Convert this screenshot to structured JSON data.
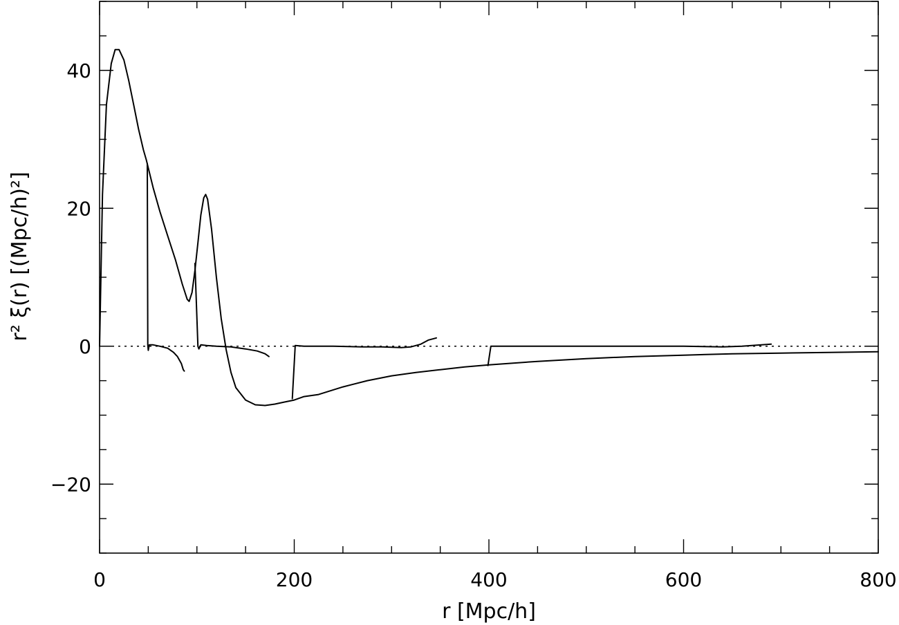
{
  "chart_data": {
    "type": "line",
    "title": "",
    "xlabel": "r  [Mpc/h]",
    "ylabel": "r² ξ(r)  [(Mpc/h)²]",
    "xlim": [
      0,
      800
    ],
    "ylim": [
      -30,
      50
    ],
    "x_ticks": [
      0,
      200,
      400,
      600,
      800
    ],
    "x_tick_labels": [
      "0",
      "200",
      "400",
      "600",
      "800"
    ],
    "x_minor_step": 50,
    "y_ticks": [
      -20,
      0,
      20,
      40
    ],
    "y_tick_labels": [
      "−20",
      "0",
      "20",
      "40"
    ],
    "y_minor_step": 5,
    "grid": false,
    "reference_lines": [
      {
        "y": 0,
        "style": "dotted"
      }
    ],
    "series": [
      {
        "values": [
          [
            0,
            0
          ],
          [
            3,
            22
          ],
          [
            7,
            35
          ],
          [
            12,
            41
          ],
          [
            16,
            43
          ],
          [
            20,
            43
          ],
          [
            25,
            41.5
          ],
          [
            30,
            38.5
          ],
          [
            35,
            35
          ],
          [
            40,
            31.5
          ],
          [
            45,
            28.5
          ],
          [
            48,
            27
          ],
          [
            55,
            23
          ],
          [
            62,
            19.5
          ],
          [
            70,
            16
          ],
          [
            78,
            12.5
          ],
          [
            85,
            9
          ],
          [
            90,
            6.8
          ],
          [
            92,
            6.5
          ],
          [
            95,
            7.8
          ],
          [
            98,
            11
          ],
          [
            101,
            15
          ],
          [
            104,
            19
          ],
          [
            107,
            21.5
          ],
          [
            109,
            22
          ],
          [
            111,
            21.3
          ],
          [
            115,
            17
          ],
          [
            120,
            10
          ],
          [
            125,
            4
          ],
          [
            130,
            -0.5
          ],
          [
            135,
            -3.8
          ],
          [
            140,
            -6
          ],
          [
            150,
            -7.8
          ],
          [
            160,
            -8.5
          ],
          [
            170,
            -8.6
          ],
          [
            180,
            -8.4
          ],
          [
            190,
            -8.1
          ],
          [
            200,
            -7.8
          ],
          [
            210,
            -7.3
          ],
          [
            225,
            -7
          ],
          [
            250,
            -5.9
          ],
          [
            275,
            -5
          ],
          [
            300,
            -4.3
          ],
          [
            325,
            -3.8
          ],
          [
            350,
            -3.4
          ],
          [
            375,
            -3.0
          ],
          [
            400,
            -2.7
          ],
          [
            450,
            -2.2
          ],
          [
            500,
            -1.8
          ],
          [
            550,
            -1.5
          ],
          [
            600,
            -1.3
          ],
          [
            650,
            -1.1
          ],
          [
            700,
            -1.0
          ],
          [
            750,
            -0.9
          ],
          [
            800,
            -0.8
          ]
        ]
      },
      {
        "values": [
          [
            49,
            26.5
          ],
          [
            49.5,
            0.2
          ],
          [
            50,
            -0.6
          ],
          [
            51,
            0.2
          ],
          [
            55,
            0.2
          ],
          [
            62,
            0
          ],
          [
            70,
            -0.3
          ],
          [
            76,
            -0.9
          ],
          [
            80,
            -1.5
          ],
          [
            84,
            -2.5
          ],
          [
            86,
            -3.4
          ],
          [
            87,
            -3.6
          ]
        ]
      },
      {
        "values": [
          [
            98,
            12
          ],
          [
            101,
            0
          ],
          [
            102,
            -0.4
          ],
          [
            104,
            0.2
          ],
          [
            110,
            0.1
          ],
          [
            120,
            0
          ],
          [
            135,
            -0.1
          ],
          [
            150,
            -0.4
          ],
          [
            162,
            -0.7
          ],
          [
            170,
            -1.1
          ],
          [
            174,
            -1.5
          ]
        ]
      },
      {
        "values": [
          [
            198,
            -7.6
          ],
          [
            201,
            0.1
          ],
          [
            210,
            0
          ],
          [
            240,
            0
          ],
          [
            270,
            -0.1
          ],
          [
            290,
            -0.1
          ],
          [
            310,
            -0.2
          ],
          [
            320,
            -0.1
          ],
          [
            330,
            0.3
          ],
          [
            338,
            0.9
          ],
          [
            346,
            1.2
          ]
        ]
      },
      {
        "values": [
          [
            399,
            -2.8
          ],
          [
            402,
            0
          ],
          [
            450,
            0
          ],
          [
            500,
            0
          ],
          [
            550,
            0
          ],
          [
            600,
            0
          ],
          [
            640,
            -0.1
          ],
          [
            660,
            0
          ],
          [
            680,
            0.2
          ],
          [
            690,
            0.3
          ]
        ]
      }
    ]
  }
}
